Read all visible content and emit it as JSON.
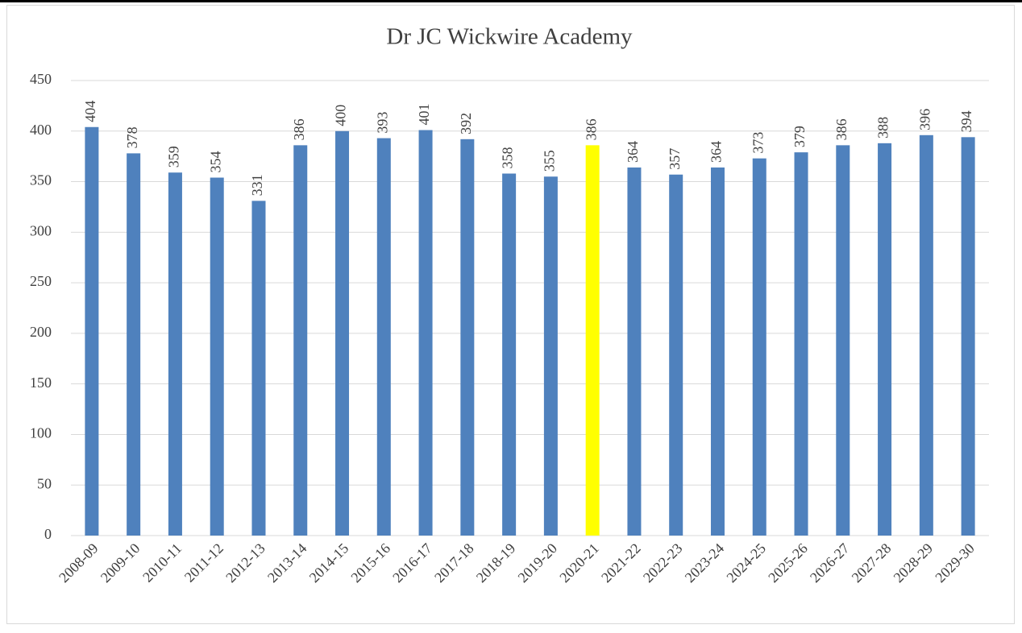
{
  "chart_data": {
    "type": "bar",
    "title": "Dr JC Wickwire Academy",
    "categories": [
      "2008-09",
      "2009-10",
      "2010-11",
      "2011-12",
      "2012-13",
      "2013-14",
      "2014-15",
      "2015-16",
      "2016-17",
      "2017-18",
      "2018-19",
      "2019-20",
      "2020-21",
      "2021-22",
      "2022-23",
      "2023-24",
      "2024-25",
      "2025-26",
      "2026-27",
      "2027-28",
      "2028-29",
      "2029-30"
    ],
    "values": [
      404,
      378,
      359,
      354,
      331,
      386,
      400,
      393,
      401,
      392,
      358,
      355,
      386,
      364,
      357,
      364,
      373,
      379,
      386,
      388,
      396,
      394
    ],
    "colors": [
      "#4f81bd",
      "#4f81bd",
      "#4f81bd",
      "#4f81bd",
      "#4f81bd",
      "#4f81bd",
      "#4f81bd",
      "#4f81bd",
      "#4f81bd",
      "#4f81bd",
      "#4f81bd",
      "#4f81bd",
      "#ffff00",
      "#4f81bd",
      "#4f81bd",
      "#4f81bd",
      "#4f81bd",
      "#4f81bd",
      "#4f81bd",
      "#4f81bd",
      "#4f81bd",
      "#4f81bd"
    ],
    "ylim": [
      0,
      450
    ],
    "yticks": [
      0,
      50,
      100,
      150,
      200,
      250,
      300,
      350,
      400,
      450
    ],
    "grid": true
  }
}
